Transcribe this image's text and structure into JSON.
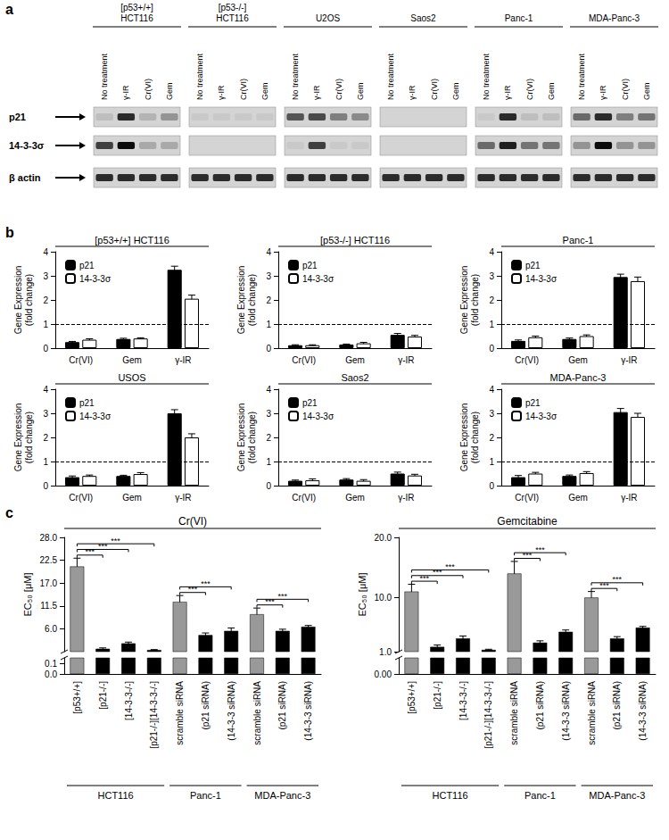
{
  "panel_labels": [
    "a",
    "b",
    "c"
  ],
  "blot": {
    "lanes": [
      "No treatment",
      "γ-IR",
      "Cr(VI)",
      "Gem"
    ],
    "proteins": [
      "p21",
      "14-3-3σ",
      "β actin"
    ],
    "groups": [
      {
        "label": [
          "[p53+/+]",
          "HCT116"
        ],
        "intensity": [
          [
            0.1,
            0.8,
            0.15,
            0.3
          ],
          [
            0.7,
            0.95,
            0.2,
            0.2
          ],
          [
            0.8,
            0.8,
            0.8,
            0.8
          ]
        ]
      },
      {
        "label": [
          "[p53-/-]",
          "HCT116"
        ],
        "intensity": [
          [
            0.05,
            0.05,
            0.05,
            0.05
          ],
          [
            0,
            0,
            0,
            0
          ],
          [
            0.8,
            0.8,
            0.8,
            0.8
          ]
        ]
      },
      {
        "label": [
          "U2OS"
        ],
        "intensity": [
          [
            0.6,
            0.65,
            0.4,
            0.35
          ],
          [
            0.05,
            0.7,
            0.05,
            0.05
          ],
          [
            0.8,
            0.8,
            0.8,
            0.8
          ]
        ]
      },
      {
        "label": [
          "Saos2"
        ],
        "intensity": [
          [
            0,
            0,
            0,
            0
          ],
          [
            0,
            0,
            0,
            0
          ],
          [
            0.8,
            0.8,
            0.8,
            0.8
          ]
        ]
      },
      {
        "label": [
          "Panc-1"
        ],
        "intensity": [
          [
            0.05,
            0.8,
            0.1,
            0.1
          ],
          [
            0.5,
            0.85,
            0.45,
            0.45
          ],
          [
            0.8,
            0.8,
            0.8,
            0.8
          ]
        ]
      },
      {
        "label": [
          "MDA-Panc-3"
        ],
        "intensity": [
          [
            0.5,
            0.8,
            0.4,
            0.45
          ],
          [
            0.3,
            0.95,
            0.3,
            0.3
          ],
          [
            0.8,
            0.8,
            0.8,
            0.8
          ]
        ]
      }
    ]
  },
  "chart_data": [
    {
      "type": "bar",
      "title": "[p53+/+] HCT116",
      "categories": [
        "Cr(VI)",
        "Gem",
        "γ-IR"
      ],
      "series": [
        {
          "name": "p21",
          "color": "#000000",
          "values": [
            0.25,
            0.38,
            3.25
          ],
          "errors": [
            0.03,
            0.03,
            0.15
          ]
        },
        {
          "name": "14-3-3σ",
          "color": "#ffffff",
          "values": [
            0.35,
            0.4,
            2.05
          ],
          "errors": [
            0.04,
            0.03,
            0.15
          ]
        }
      ],
      "y_label": "Gene Expression\n(fold change)",
      "ylim": [
        0,
        4
      ],
      "yticks": [
        0,
        1,
        2,
        3,
        4
      ],
      "reference_line": 1,
      "legend": "upper left"
    },
    {
      "type": "bar",
      "title": "[p53-/-] HCT116",
      "categories": [
        "Cr(VI)",
        "Gem",
        "γ-IR"
      ],
      "series": [
        {
          "name": "p21",
          "color": "#000000",
          "values": [
            0.12,
            0.15,
            0.55
          ],
          "errors": [
            0.02,
            0.02,
            0.06
          ]
        },
        {
          "name": "14-3-3σ",
          "color": "#ffffff",
          "values": [
            0.12,
            0.2,
            0.48
          ],
          "errors": [
            0.02,
            0.04,
            0.05
          ]
        }
      ],
      "y_label": "Gene Expression\n(fold change)",
      "ylim": [
        0,
        4
      ],
      "yticks": [
        0,
        1,
        2,
        3,
        4
      ],
      "reference_line": 1,
      "legend": "upper left"
    },
    {
      "type": "bar",
      "title": "Panc-1",
      "categories": [
        "Cr(VI)",
        "Gem",
        "γ-IR"
      ],
      "series": [
        {
          "name": "p21",
          "color": "#000000",
          "values": [
            0.3,
            0.38,
            2.95
          ],
          "errors": [
            0.04,
            0.04,
            0.12
          ]
        },
        {
          "name": "14-3-3σ",
          "color": "#ffffff",
          "values": [
            0.45,
            0.5,
            2.78
          ],
          "errors": [
            0.05,
            0.05,
            0.17
          ]
        }
      ],
      "y_label": "Gene Expression\n(fold change)",
      "ylim": [
        0,
        4
      ],
      "yticks": [
        0,
        1,
        2,
        3,
        4
      ],
      "reference_line": 1,
      "legend": "upper left"
    },
    {
      "type": "bar",
      "title": "USOS",
      "categories": [
        "Cr(VI)",
        "Gem",
        "γ-IR"
      ],
      "series": [
        {
          "name": "p21",
          "color": "#000000",
          "values": [
            0.35,
            0.4,
            3.0
          ],
          "errors": [
            0.05,
            0.03,
            0.15
          ]
        },
        {
          "name": "14-3-3σ",
          "color": "#ffffff",
          "values": [
            0.4,
            0.48,
            2.0
          ],
          "errors": [
            0.04,
            0.06,
            0.15
          ]
        }
      ],
      "y_label": "Gene Expression\n(fold change)",
      "ylim": [
        0,
        4
      ],
      "yticks": [
        0,
        1,
        2,
        3,
        4
      ],
      "reference_line": 1,
      "legend": "upper left"
    },
    {
      "type": "bar",
      "title": "Saos2",
      "categories": [
        "Cr(VI)",
        "Gem",
        "γ-IR"
      ],
      "series": [
        {
          "name": "p21",
          "color": "#000000",
          "values": [
            0.2,
            0.25,
            0.5
          ],
          "errors": [
            0.03,
            0.04,
            0.06
          ]
        },
        {
          "name": "14-3-3σ",
          "color": "#ffffff",
          "values": [
            0.22,
            0.2,
            0.42
          ],
          "errors": [
            0.06,
            0.05,
            0.05
          ]
        }
      ],
      "y_label": "Gene Expression\n(fold change)",
      "ylim": [
        0,
        4
      ],
      "yticks": [
        0,
        1,
        2,
        3,
        4
      ],
      "reference_line": 1,
      "legend": "upper left"
    },
    {
      "type": "bar",
      "title": "MDA-Panc-3",
      "categories": [
        "Cr(VI)",
        "Gem",
        "γ-IR"
      ],
      "series": [
        {
          "name": "p21",
          "color": "#000000",
          "values": [
            0.35,
            0.4,
            3.05
          ],
          "errors": [
            0.07,
            0.04,
            0.15
          ]
        },
        {
          "name": "14-3-3σ",
          "color": "#ffffff",
          "values": [
            0.5,
            0.52,
            2.85
          ],
          "errors": [
            0.05,
            0.06,
            0.15
          ]
        }
      ],
      "y_label": "Gene Expression\n(fold change)",
      "ylim": [
        0,
        4
      ],
      "yticks": [
        0,
        1,
        2,
        3,
        4
      ],
      "reference_line": 1,
      "legend": "upper left"
    },
    {
      "type": "broken_bar",
      "title": "Cr(VI)",
      "groups": [
        {
          "label": "HCT116",
          "categories": [
            "[p53+/+]",
            "[p21-/-]",
            "[14-3-3-/-]",
            "[p21-/-][14-3-3-/-]"
          ]
        },
        {
          "label": "Panc-1",
          "categories": [
            "scramble siRNA",
            "(p21 siRNA)",
            "(14-3-3 siRNA)"
          ]
        },
        {
          "label": "MDA-Panc-3",
          "categories": [
            "scramble siRNA",
            "(p21 siRNA)",
            "(14-3-3 siRNA)"
          ]
        }
      ],
      "values": [
        21,
        1.2,
        2.5,
        0.9,
        12.5,
        4.5,
        5.5,
        9.5,
        5.5,
        6.5
      ],
      "errors": [
        2,
        0.2,
        0.3,
        0.1,
        1.5,
        0.5,
        0.7,
        1.5,
        0.4,
        0.3
      ],
      "colors": [
        "#999999",
        "#000000",
        "#000000",
        "#000000",
        "#999999",
        "#000000",
        "#000000",
        "#999999",
        "#000000",
        "#000000"
      ],
      "y_label": "EC₅₀ [μM]",
      "ylim": [
        0.5,
        28
      ],
      "yticks": [
        {
          "value": 6,
          "label": "6.0"
        },
        {
          "value": 11.5,
          "label": "11.5"
        },
        {
          "value": 17,
          "label": "17.0"
        },
        {
          "value": 22.5,
          "label": "22.5"
        },
        {
          "value": 28,
          "label": "28.0"
        }
      ],
      "lower_ylim": [
        0,
        0.15
      ],
      "lower_yticks": [
        {
          "value": 0,
          "label": "0.0"
        },
        {
          "value": 0.1,
          "label": "0.1"
        }
      ],
      "comparisons": [
        {
          "from": 0,
          "to": 1,
          "label": "***"
        },
        {
          "from": 0,
          "to": 2,
          "label": "***"
        },
        {
          "from": 0,
          "to": 3,
          "label": "***"
        },
        {
          "from": 4,
          "to": 5,
          "label": "***"
        },
        {
          "from": 4,
          "to": 6,
          "label": "***"
        },
        {
          "from": 7,
          "to": 8,
          "label": "***"
        },
        {
          "from": 7,
          "to": 9,
          "label": "***"
        }
      ]
    },
    {
      "type": "broken_bar",
      "title": "Gemcitabine",
      "groups": [
        {
          "label": "HCT116",
          "categories": [
            "[p53+/+]",
            "[p21-/-]",
            "[14-3-3-/-]",
            "[p21-/-][14-3-3-/-]"
          ]
        },
        {
          "label": "Panc-1",
          "categories": [
            "scramble siRNA",
            "(p21 siRNA)",
            "(14-3-3 siRNA)"
          ]
        },
        {
          "label": "MDA-Panc-3",
          "categories": [
            "scramble siRNA",
            "(p21 siRNA)",
            "(14-3-3 siRNA)"
          ]
        }
      ],
      "values": [
        11,
        1.8,
        3.2,
        1.3,
        14,
        2.5,
        4.3,
        10,
        3.2,
        5
      ],
      "errors": [
        1.2,
        0.3,
        0.4,
        0.1,
        2,
        0.3,
        0.3,
        1,
        0.3,
        0.2
      ],
      "colors": [
        "#999999",
        "#000000",
        "#000000",
        "#000000",
        "#999999",
        "#000000",
        "#000000",
        "#999999",
        "#000000",
        "#000000"
      ],
      "y_label": "EC₅₀ [μM]",
      "ylim": [
        1,
        20
      ],
      "yticks": [
        {
          "value": 1,
          "label": "1.0"
        },
        {
          "value": 10,
          "label": "10.0"
        },
        {
          "value": 20,
          "label": "20.0"
        }
      ],
      "lower_ylim": [
        0,
        0.1
      ],
      "lower_yticks": [
        {
          "value": 0,
          "label": "0.00"
        }
      ],
      "comparisons": [
        {
          "from": 0,
          "to": 1,
          "label": "***"
        },
        {
          "from": 0,
          "to": 2,
          "label": "***"
        },
        {
          "from": 0,
          "to": 3,
          "label": "***"
        },
        {
          "from": 4,
          "to": 5,
          "label": "***"
        },
        {
          "from": 4,
          "to": 6,
          "label": "***"
        },
        {
          "from": 7,
          "to": 8,
          "label": "***"
        },
        {
          "from": 7,
          "to": 9,
          "label": "***"
        }
      ]
    }
  ]
}
